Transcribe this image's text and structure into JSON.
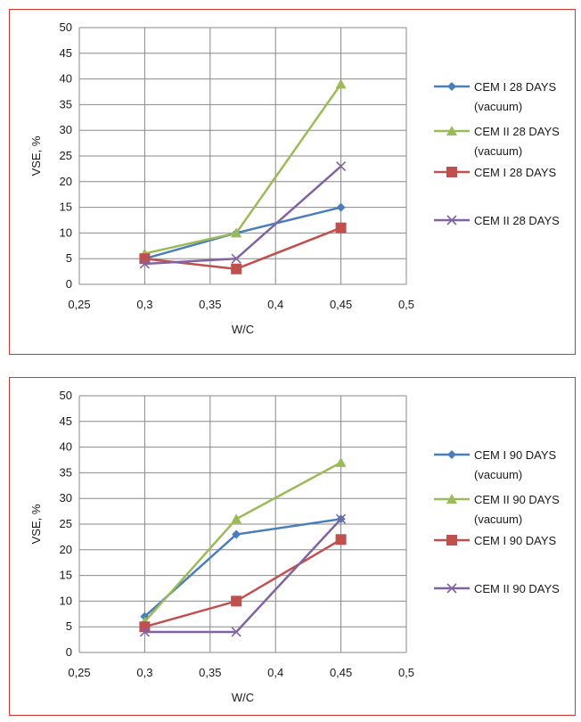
{
  "chart_data": [
    {
      "type": "scatter",
      "xlabel": "W/C",
      "ylabel": "VSE, %",
      "xlim": [
        0.25,
        0.5
      ],
      "ylim": [
        0,
        50
      ],
      "xticks": [
        "0,25",
        "0,3",
        "0,35",
        "0,4",
        "0,45",
        "0,5"
      ],
      "yticks": [
        "0",
        "5",
        "10",
        "15",
        "20",
        "25",
        "30",
        "35",
        "40",
        "45",
        "50"
      ],
      "grid": true,
      "legend_position": "right",
      "series": [
        {
          "name": "CEM I 28 DAYS (vacuum)",
          "legend_lines": [
            "CEM I 28 DAYS",
            "(vacuum)"
          ],
          "color": "#4a7ebb",
          "marker": "diamond",
          "x": [
            0.3,
            0.37,
            0.45
          ],
          "y": [
            5,
            10,
            15
          ]
        },
        {
          "name": "CEM II 28 DAYS (vacuum)",
          "legend_lines": [
            "CEM II 28 DAYS",
            "(vacuum)"
          ],
          "color": "#9bbb59",
          "marker": "triangle",
          "x": [
            0.3,
            0.37,
            0.45
          ],
          "y": [
            6,
            10,
            39
          ]
        },
        {
          "name": "CEM I 28 DAYS",
          "legend_lines": [
            "CEM I 28 DAYS"
          ],
          "color": "#c0504d",
          "marker": "square",
          "x": [
            0.3,
            0.37,
            0.45
          ],
          "y": [
            5,
            3,
            11
          ]
        },
        {
          "name": "CEM II 28 DAYS",
          "legend_lines": [
            "CEM II 28 DAYS"
          ],
          "color": "#8064a2",
          "marker": "x",
          "x": [
            0.3,
            0.37,
            0.45
          ],
          "y": [
            4,
            5,
            23
          ]
        }
      ]
    },
    {
      "type": "scatter",
      "xlabel": "W/C",
      "ylabel": "VSE, %",
      "xlim": [
        0.25,
        0.5
      ],
      "ylim": [
        0,
        50
      ],
      "xticks": [
        "0,25",
        "0,3",
        "0,35",
        "0,4",
        "0,45",
        "0,5"
      ],
      "yticks": [
        "0",
        "5",
        "10",
        "15",
        "20",
        "25",
        "30",
        "35",
        "40",
        "45",
        "50"
      ],
      "grid": true,
      "legend_position": "right",
      "series": [
        {
          "name": "CEM I 90 DAYS (vacuum)",
          "legend_lines": [
            "CEM I 90 DAYS",
            "(vacuum)"
          ],
          "color": "#4a7ebb",
          "marker": "diamond",
          "x": [
            0.3,
            0.37,
            0.45
          ],
          "y": [
            7,
            23,
            26
          ]
        },
        {
          "name": "CEM II 90 DAYS (vacuum)",
          "legend_lines": [
            "CEM II 90 DAYS",
            "(vacuum)"
          ],
          "color": "#9bbb59",
          "marker": "triangle",
          "x": [
            0.3,
            0.37,
            0.45
          ],
          "y": [
            6,
            26,
            37
          ]
        },
        {
          "name": "CEM I 90 DAYS",
          "legend_lines": [
            "CEM I 90 DAYS"
          ],
          "color": "#c0504d",
          "marker": "square",
          "x": [
            0.3,
            0.37,
            0.45
          ],
          "y": [
            5,
            10,
            22
          ]
        },
        {
          "name": "CEM II 90 DAYS",
          "legend_lines": [
            "CEM II 90 DAYS"
          ],
          "color": "#8064a2",
          "marker": "x",
          "x": [
            0.3,
            0.37,
            0.45
          ],
          "y": [
            4,
            4,
            26
          ]
        }
      ]
    }
  ]
}
